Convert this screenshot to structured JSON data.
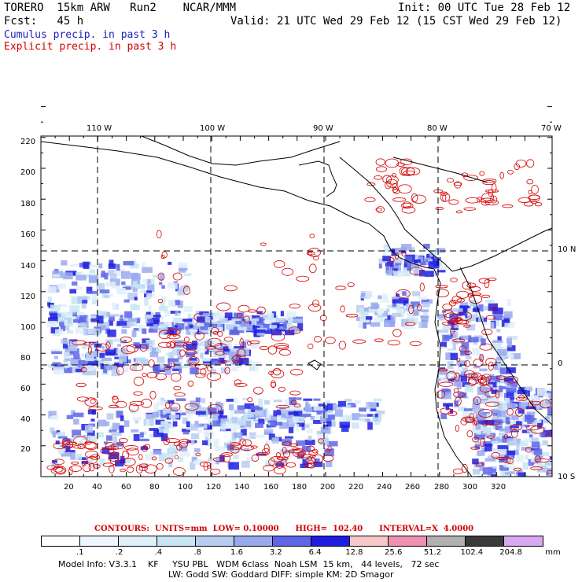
{
  "header": {
    "model": "TORERO  15km ARW   Run2    NCAR/MMM",
    "init": "Init: 00 UTC Tue 28 Feb 12",
    "fcst": "Fcst:   45 h",
    "valid": "Valid: 21 UTC Wed 29 Feb 12 (15 CST Wed 29 Feb 12)"
  },
  "legend": {
    "cumulus": "Cumulus precip. in past 3 h",
    "explicit": "Explicit precip. in past 3 h",
    "cumulus_color": "#2020c0",
    "explicit_color": "#d40000"
  },
  "axes": {
    "top_lon_labels": [
      "110 W",
      "100 W",
      "90 W",
      "80 W",
      "70 W"
    ],
    "right_lat_labels": [
      "10 N",
      "0",
      "10 S"
    ],
    "left_ticks": [
      "220",
      "200",
      "180",
      "160",
      "140",
      "120",
      "100",
      "80",
      "60",
      "40",
      "20"
    ],
    "bottom_ticks": [
      "20",
      "40",
      "60",
      "80",
      "100",
      "120",
      "140",
      "160",
      "180",
      "200",
      "220",
      "240",
      "260",
      "280",
      "300",
      "320"
    ]
  },
  "contours": {
    "label": "CONTOURS:  UNITS=mm  LOW= 0.10000      HIGH=  102.40      INTERVAL=X  4.0000"
  },
  "colorbar": {
    "colors": [
      "#ffffff",
      "#f0f6ff",
      "#e0f0fa",
      "#c8e6f5",
      "#b8cdf0",
      "#9aa9ee",
      "#5e66e6",
      "#1e1ee0",
      "#f7c8c8",
      "#f090b0",
      "#b0b0b0",
      "#3a3a3a",
      "#d8a8f0"
    ],
    "labels": [
      ".1",
      ".2",
      ".4",
      ".8",
      "1.6",
      "3.2",
      "6.4",
      "12.8",
      "25.6",
      "51.2",
      "102.4",
      "204.8"
    ],
    "units": "mm"
  },
  "footer": {
    "line1": "Model Info: V3.3.1    KF     YSU PBL   WDM 6class  Noah LSM  15 km,   44 levels,   72 sec",
    "line2": "LW: Godd SW: Goddard DIFF: simple KM: 2D Smagor"
  }
}
